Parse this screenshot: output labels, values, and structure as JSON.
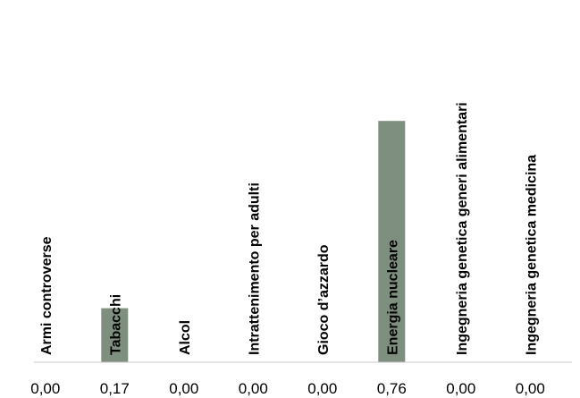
{
  "chart_data": {
    "type": "bar",
    "categories": [
      "Armi controverse",
      "Tabacchi",
      "Alcol",
      "Intrattenimento per adulti",
      "Gioco d’azzardo",
      "Energia nucleare",
      "Ingegneria genetica generi alimentari",
      "Ingegneria genetica medicina"
    ],
    "values": [
      0,
      0.17,
      0,
      0,
      0,
      0.76,
      0,
      0
    ],
    "value_labels": [
      "0,00",
      "0,17",
      "0,00",
      "0,00",
      "0,00",
      "0,76",
      "0,00",
      "0,00"
    ],
    "ylim": [
      0,
      1
    ],
    "grid": false,
    "bar_color": "#7f8f7f",
    "axis_color": "#c8c8c8"
  }
}
